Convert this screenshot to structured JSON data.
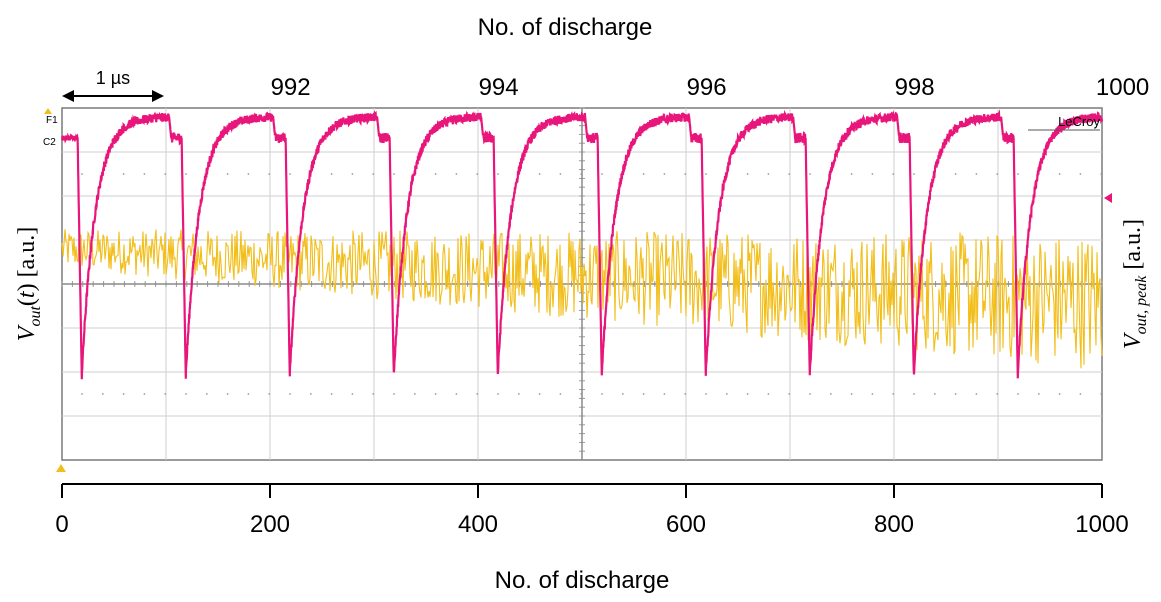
{
  "chart_data": {
    "type": "line",
    "top_axis": {
      "title": "No. of discharge",
      "tick_labels": [
        "992",
        "994",
        "996",
        "998",
        "1000"
      ],
      "tick_x": [
        165,
        365,
        565,
        765,
        965
      ]
    },
    "bottom_axis": {
      "title": "No. of discharge",
      "ticks": [
        0,
        200,
        400,
        600,
        800,
        1000
      ],
      "xlim": [
        0,
        1000
      ]
    },
    "ylabel_left": {
      "main": "V",
      "sub": "out",
      "tail": "(",
      "var": "t",
      "close": ") [a.u.]"
    },
    "ylabel_right": {
      "main": "V",
      "sub": "out, peak",
      "tail": " [a.u.]"
    },
    "time_scale_label": "1 µs",
    "time_scale_span": [
      0,
      100
    ],
    "scope": {
      "brand": "LeCroy",
      "channel_labels": [
        "F1",
        "C2"
      ],
      "divisions_x": 10,
      "divisions_y": 8,
      "grid": true
    },
    "series": [
      {
        "channel": "C2",
        "color": "#e8157a",
        "kind": "discharge_waveform",
        "pulse_x": [
          15,
          115,
          215,
          315,
          415,
          515,
          615,
          715,
          815,
          915
        ],
        "baseline_level": 0.83,
        "min_level": -0.52,
        "plateau_level": 0.95,
        "period": 100
      },
      {
        "channel": "F1",
        "color": "#f2be1a",
        "kind": "peak_voltage_trend",
        "mean_start": 0.2,
        "mean_end": -0.1,
        "spread_start": 0.08,
        "spread_end": 0.28
      }
    ]
  }
}
